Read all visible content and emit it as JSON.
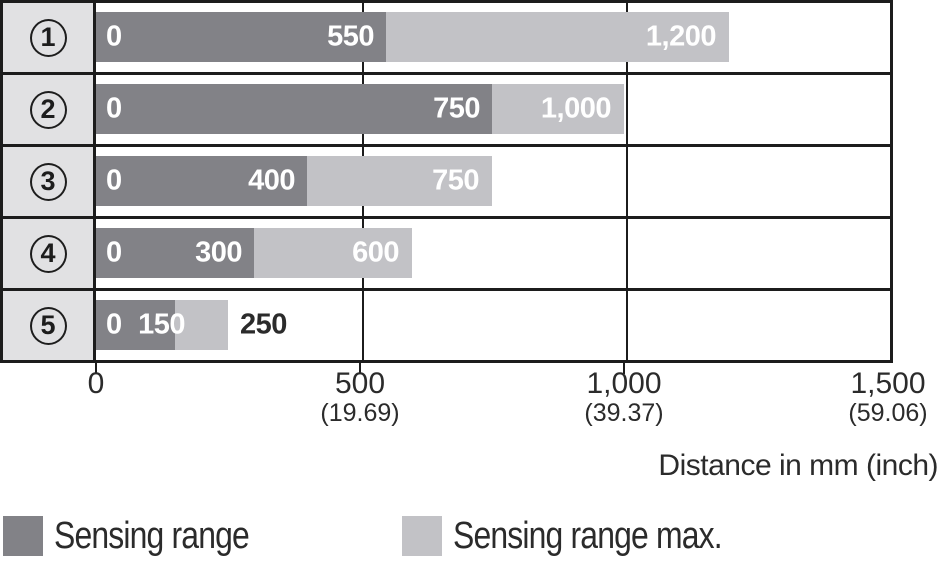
{
  "chart_data": {
    "type": "bar",
    "orientation": "horizontal",
    "title": "",
    "xlabel": "Distance in mm (inch)",
    "xlim": [
      0,
      1500
    ],
    "grid": "vertical gridlines at 500 and 1000",
    "legend_position": "bottom",
    "x_ticks": [
      {
        "mm_value": 0,
        "mm": "0",
        "inch": ""
      },
      {
        "mm_value": 500,
        "mm": "500",
        "inch": "(19.69)"
      },
      {
        "mm_value": 1000,
        "mm": "1,000",
        "inch": "(39.37)"
      },
      {
        "mm_value": 1500,
        "mm": "1,500",
        "inch": "(59.06)"
      }
    ],
    "categories": [
      "1",
      "2",
      "3",
      "4",
      "5"
    ],
    "series": [
      {
        "name": "Sensing range",
        "values": [
          550,
          750,
          400,
          300,
          150
        ]
      },
      {
        "name": "Sensing range max.",
        "values": [
          1200,
          1000,
          750,
          600,
          250
        ]
      }
    ],
    "rows": [
      {
        "category": "1",
        "zero_label": "0",
        "range": 550,
        "range_label": "550",
        "max": 1200,
        "max_label": "1,200"
      },
      {
        "category": "2",
        "zero_label": "0",
        "range": 750,
        "range_label": "750",
        "max": 1000,
        "max_label": "1,000"
      },
      {
        "category": "3",
        "zero_label": "0",
        "range": 400,
        "range_label": "400",
        "max": 750,
        "max_label": "750"
      },
      {
        "category": "4",
        "zero_label": "0",
        "range": 300,
        "range_label": "300",
        "max": 600,
        "max_label": "600"
      },
      {
        "category": "5",
        "zero_label": "0",
        "range": 150,
        "range_label": "150",
        "max": 250,
        "max_label": "250"
      }
    ]
  },
  "legend": {
    "items": [
      {
        "label": "Sensing range",
        "color": "#828287"
      },
      {
        "label": "Sensing range max.",
        "color": "#c2c2c6"
      }
    ]
  },
  "colors": {
    "sensing_range": "#828287",
    "sensing_range_max": "#c2c2c6",
    "row_header_bg": "#e1e1e3",
    "border": "#1c1c1c",
    "text": "#2b2b2b",
    "bar_label_text": "#ffffff"
  }
}
